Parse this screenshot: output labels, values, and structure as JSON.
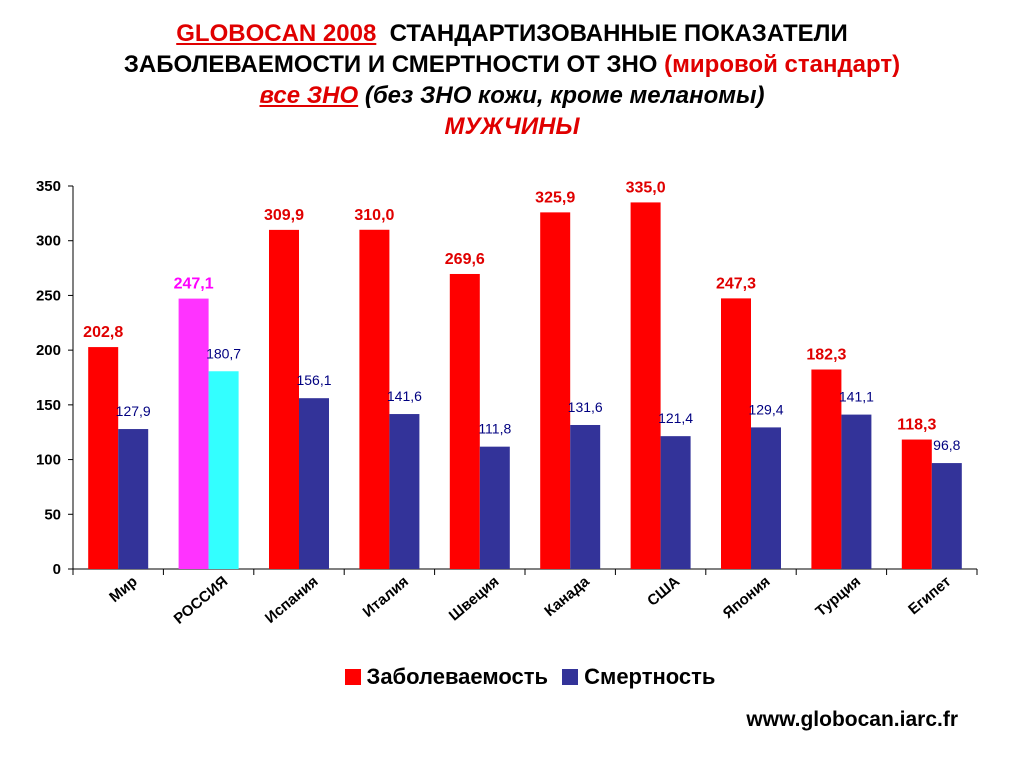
{
  "title": {
    "line1_red": "GLOBOCAN 2008",
    "line1_black": "СТАНДАРТИЗОВАННЫЕ ПОКАЗАТЕЛИ",
    "line2_black": "ЗАБОЛЕВАЕМОСТИ И СМЕРТНОСТИ ОТ ЗНО",
    "line2_red": "(мировой стандарт)",
    "line3_red": "все ЗНО",
    "line3_black": "(без ЗНО кожи, кроме меланомы)",
    "line4_red": "МУЖЧИНЫ"
  },
  "source": "www.globocan.iarc.fr",
  "colors": {
    "incidence": "#ff0000",
    "mortality": "#333399",
    "russia_incidence": "#ff33ff",
    "russia_mortality": "#33ffff",
    "incidence_label": "#e00000",
    "russia_label": "#ff00ff",
    "mortality_label": "#000080"
  },
  "chart_data": {
    "type": "bar",
    "categories": [
      "Мир",
      "РОССИЯ",
      "Испания",
      "Италия",
      "Швеция",
      "Канада",
      "США",
      "Япония",
      "Турция",
      "Египет"
    ],
    "series": [
      {
        "name": "Заболеваемость",
        "values": [
          202.8,
          247.1,
          309.9,
          310.0,
          269.6,
          325.9,
          335.0,
          247.3,
          182.3,
          118.3
        ],
        "labels": [
          "202,8",
          "247,1",
          "309,9",
          "310,0",
          "269,6",
          "325,9",
          "335,0",
          "247,3",
          "182,3",
          "118,3"
        ]
      },
      {
        "name": "Смертность",
        "values": [
          127.9,
          180.7,
          156.1,
          141.6,
          111.8,
          131.6,
          121.4,
          129.4,
          141.1,
          96.8
        ],
        "labels": [
          "127,9",
          "180,7",
          "156,1",
          "141,6",
          "111,8",
          "131,6",
          "121,4",
          "129,4",
          "141,1",
          "96,8"
        ]
      }
    ],
    "highlight_category": "РОССИЯ",
    "yticks": [
      0,
      50,
      100,
      150,
      200,
      250,
      300,
      350
    ],
    "ylim": [
      0,
      350
    ],
    "legend": "bottom",
    "grid": false
  }
}
